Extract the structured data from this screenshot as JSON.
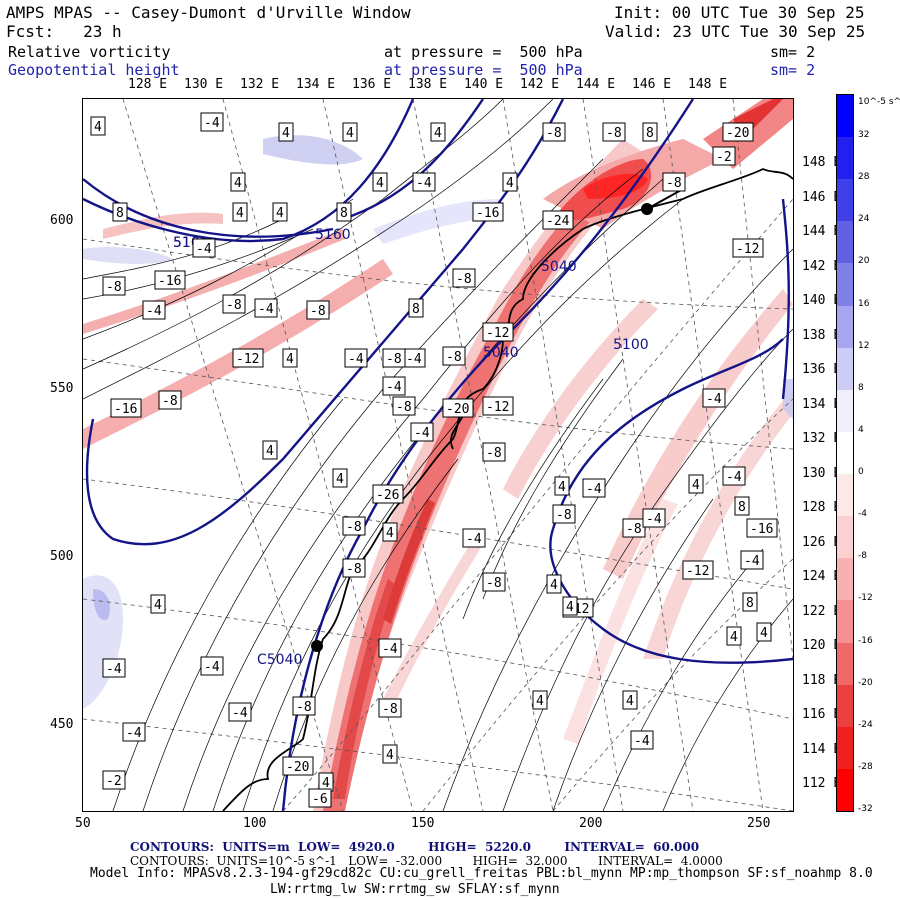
{
  "header": {
    "model_title": "AMPS MPAS -- Casey-Dumont d'Urville Window",
    "init": "Init: 00 UTC Tue 30 Sep 25",
    "forecast": "Fcst:   23 h",
    "valid": "Valid: 23 UTC Tue 30 Sep 25",
    "field1": "Relative vorticity",
    "field1_level": "at pressure =  500 hPa",
    "field1_sm": "sm= 2",
    "field2": "Geopotential height",
    "field2_level": "at pressure =  500 hPa",
    "field2_sm": "sm= 2"
  },
  "axes": {
    "top_lon": [
      "128 E",
      "130 E",
      "132 E",
      "134 E",
      "136 E",
      "138 E",
      "140 E",
      "142 E",
      "144 E",
      "146 E",
      "148 E"
    ],
    "right_lat": [
      "148 E",
      "146 E",
      "144 E",
      "142 E",
      "140 E",
      "138 E",
      "136 E",
      "134 E",
      "132 E",
      "130 E",
      "128 E",
      "126 E",
      "124 E",
      "122 E",
      "120 E",
      "118 E",
      "116 E",
      "114 E",
      "112 E"
    ],
    "bottom_x": [
      "50",
      "100",
      "150",
      "200",
      "250"
    ],
    "left_y": [
      "600",
      "550",
      "500",
      "450"
    ]
  },
  "colorbar": {
    "unit": "10^-5 s^-1",
    "labels": [
      "32",
      "28",
      "24",
      "20",
      "16",
      "12",
      "8",
      "4",
      "0",
      "-4",
      "-8",
      "-12",
      "-16",
      "-20",
      "-24",
      "-28",
      "-32"
    ],
    "colors": [
      "#0000ff",
      "#2020f0",
      "#4040e8",
      "#6060e0",
      "#8080e8",
      "#a6a6f0",
      "#ccccf6",
      "#eeeefc",
      "#ffffff",
      "#fde8e8",
      "#fbd0d0",
      "#f8b0b0",
      "#f49090",
      "#f06868",
      "#ec4040",
      "#f02020",
      "#ff0000"
    ]
  },
  "map": {
    "height_contour_labels": [
      "5160",
      "5040",
      "5040",
      "5100",
      "5160",
      "5100"
    ],
    "station_label": "C5040",
    "vorticity_labels": [
      "4",
      "-4",
      "4",
      "4",
      "4",
      "-8",
      "8",
      "-20",
      "-8",
      "-2",
      "-8",
      "4",
      "4",
      "-4",
      "4",
      "8",
      "-16",
      "-24",
      "-12",
      "4",
      "-4",
      "-16",
      "-8",
      "-4",
      "-8",
      "-4",
      "-8",
      "4",
      "8",
      "-12",
      "4",
      "-4",
      "-4",
      "-8",
      "-16",
      "-8",
      "-4",
      "-8",
      "-4",
      "-20",
      "-12",
      "4",
      "-8",
      "4",
      "8",
      "-8",
      "-12",
      "-12",
      "-26",
      "-8",
      "4",
      "-8",
      "-8",
      "-4",
      "4",
      "-8",
      "-4",
      "-8",
      "4",
      "-4",
      "-4",
      "-12",
      "-4",
      "4",
      "-4",
      "8",
      "-8",
      "4",
      "4",
      "-4",
      "-4",
      "-8",
      "4",
      "-4",
      "-4",
      "4",
      "-4",
      "4",
      "-4",
      "4",
      "4",
      "8",
      "4",
      "-16",
      "-2",
      "-6",
      "-8",
      "-20"
    ]
  },
  "footer": {
    "contours_height": "CONTOURS:  UNITS=m  LOW=  4920.0        HIGH=  5220.0        INTERVAL=  60.000",
    "contours_vort": "CONTOURS:  UNITS=10^-5 s^-1   LOW=  -32.000        HIGH=  32.000        INTERVAL=  4.0000",
    "model_info": "Model Info: MPASv8.2.3-194-gf29cd82c CU:cu_grell_freitas PBL:bl_mynn MP:mp_thompson SF:sf_noahmp 8.0",
    "model_info2": "LW:rrtmg_lw SW:rrtmg_sw SFLAY:sf_mynn"
  }
}
